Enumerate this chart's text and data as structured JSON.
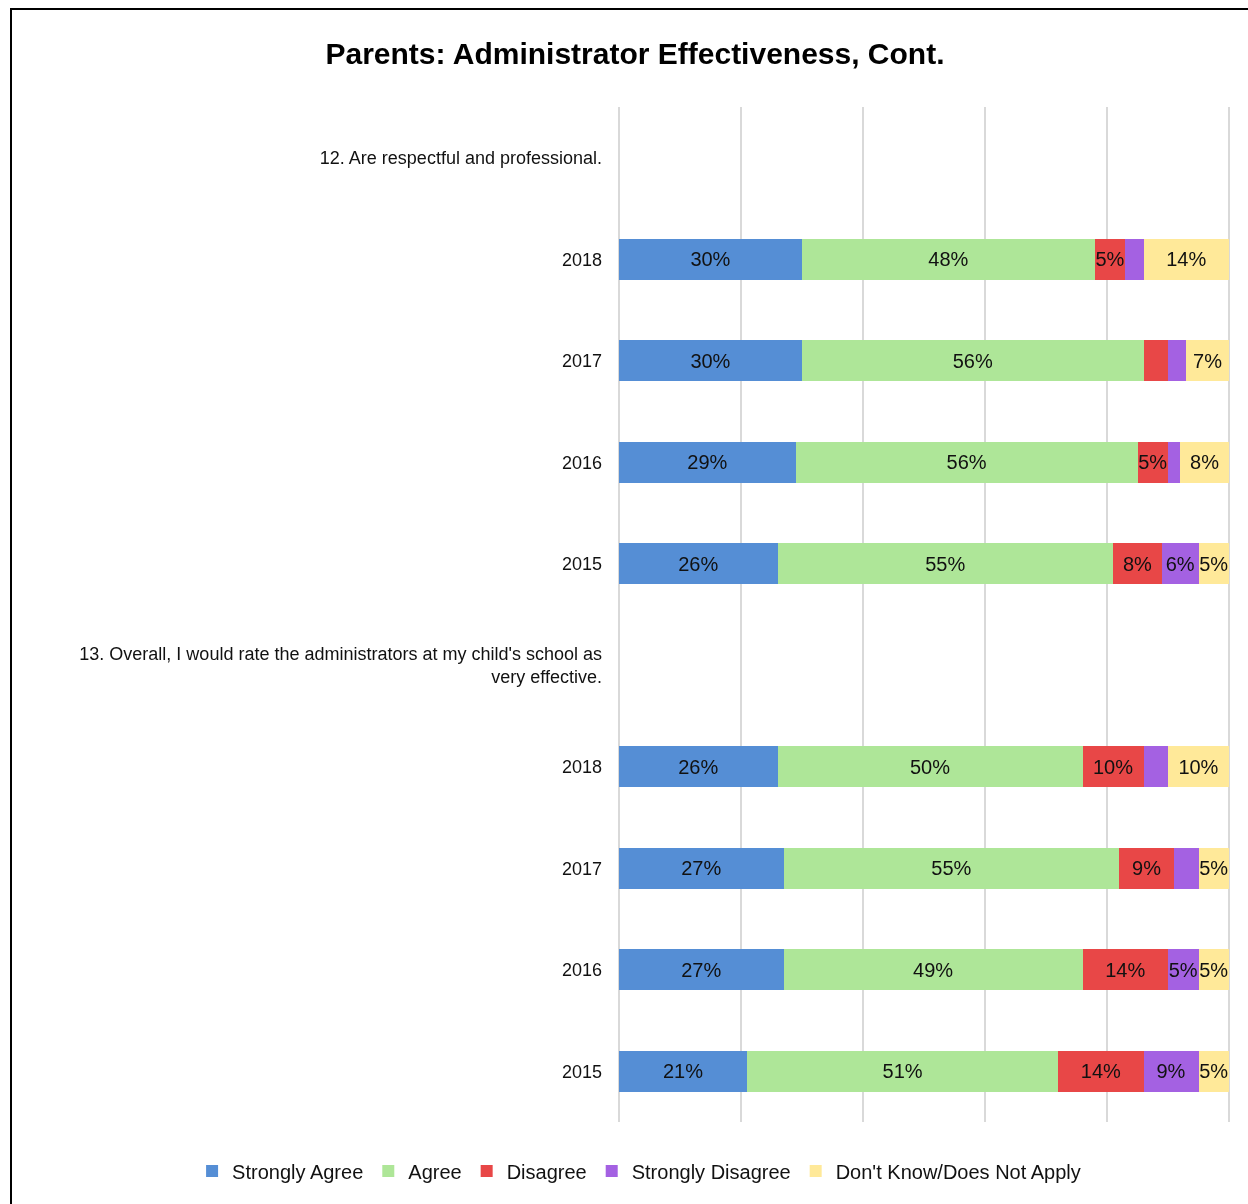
{
  "chart_data": {
    "type": "bar",
    "orientation": "horizontal",
    "stacked": true,
    "title": "Parents: Administrator Effectiveness, Cont.",
    "categories": [
      "12. Are respectful and professional.",
      "2018",
      "2017",
      "2016",
      "2015",
      "13. Overall, I would rate the administrators at my child's school as very effective.",
      "2018",
      "2017",
      "2016",
      "2015"
    ],
    "series": [
      {
        "name": "Strongly Agree",
        "color": "#558ed5",
        "values": [
          null,
          30,
          30,
          29,
          26,
          null,
          26,
          27,
          27,
          21
        ],
        "value_labels": [
          null,
          "30%",
          "30%",
          "29%",
          "26%",
          null,
          "26%",
          "27%",
          "27%",
          "21%"
        ]
      },
      {
        "name": "Agree",
        "color": "#aee698",
        "values": [
          null,
          48,
          56,
          56,
          55,
          null,
          50,
          55,
          49,
          51
        ],
        "value_labels": [
          null,
          "48%",
          "56%",
          "56%",
          "55%",
          null,
          "50%",
          "55%",
          "49%",
          "51%"
        ]
      },
      {
        "name": "Disagree",
        "color": "#e84747",
        "values": [
          null,
          5,
          4,
          5,
          8,
          null,
          10,
          9,
          14,
          14
        ],
        "value_labels": [
          null,
          "5%",
          null,
          "5%",
          "8%",
          null,
          "10%",
          "9%",
          "14%",
          "14%"
        ]
      },
      {
        "name": "Strongly Disagree",
        "color": "#a461e2",
        "values": [
          null,
          3,
          3,
          2,
          6,
          null,
          4,
          4,
          5,
          9
        ],
        "value_labels": [
          null,
          null,
          null,
          null,
          "6%",
          null,
          null,
          null,
          "5%",
          "9%"
        ]
      },
      {
        "name": "Don't Know/Does Not Apply",
        "color": "#ffe999",
        "values": [
          null,
          14,
          7,
          8,
          5,
          null,
          10,
          5,
          5,
          5
        ],
        "value_labels": [
          null,
          "14%",
          "7%",
          "8%",
          "5%",
          null,
          "10%",
          "5%",
          "5%",
          "5%"
        ]
      }
    ],
    "xlim": [
      0,
      100
    ],
    "xticks": [
      {
        "value": 0,
        "label": null
      },
      {
        "value": 20,
        "label": null
      },
      {
        "value": 40,
        "label": null
      },
      {
        "value": 60,
        "label": null
      },
      {
        "value": 80,
        "label": null
      },
      {
        "value": 100,
        "label": null
      }
    ],
    "tick_labels": "y",
    "grid": "x",
    "legend": "bottom"
  }
}
